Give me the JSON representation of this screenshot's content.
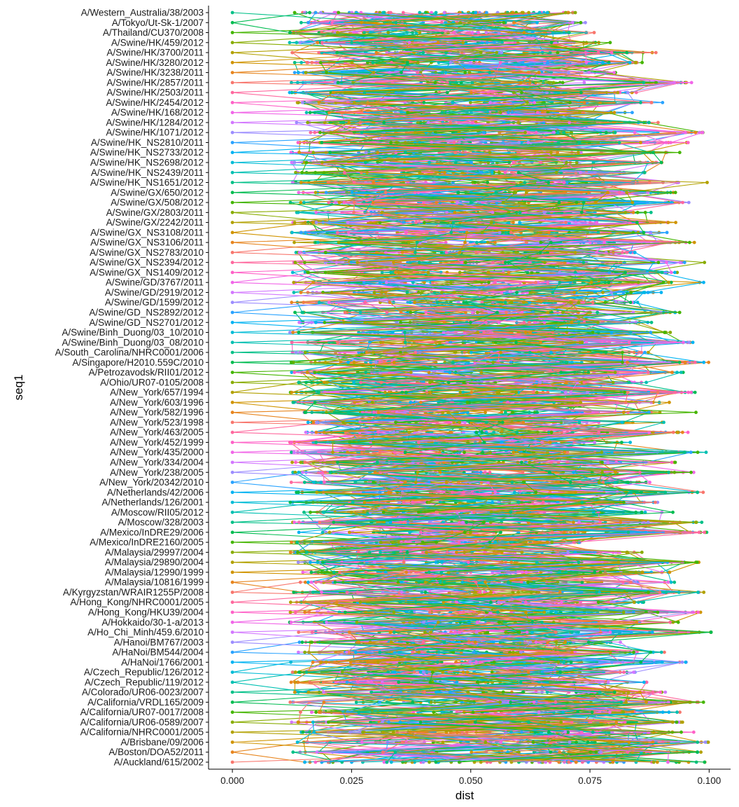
{
  "chart_data": {
    "type": "line",
    "xlabel": "dist",
    "ylabel": "seq1",
    "xlim": [
      -0.005,
      0.1045
    ],
    "x_ticks": [
      0.0,
      0.025,
      0.05,
      0.075,
      0.1
    ],
    "x_tick_labels": [
      "0.000",
      "0.025",
      "0.050",
      "0.075",
      "0.100"
    ],
    "grid": false,
    "legend": "none",
    "y_categories_bottom_to_top": [
      "A/Auckland/615/2002",
      "A/Boston/DOA52/2011",
      "A/Brisbane/09/2006",
      "A/California/NHRC0001/2005",
      "A/California/UR06-0589/2007",
      "A/California/UR07-0017/2008",
      "A/California/VRDL165/2009",
      "A/Colorado/UR06-0023/2007",
      "A/Czech_Republic/119/2012",
      "A/Czech_Republic/126/2012",
      "A/HaNoi/1766/2001",
      "A/HaNoi/BM544/2004",
      "A/Hanoi/BM767/2003",
      "A/Ho_Chi_Minh/459.6/2010",
      "A/Hokkaido/30-1-a/2013",
      "A/Hong_Kong/HKU39/2004",
      "A/Hong_Kong/NHRC0001/2005",
      "A/Kyrgyzstan/WRAIR1255P/2008",
      "A/Malaysia/10816/1999",
      "A/Malaysia/12990/1999",
      "A/Malaysia/29890/2004",
      "A/Malaysia/29997/2004",
      "A/Mexico/InDRE2160/2005",
      "A/Mexico/InDRE29/2006",
      "A/Moscow/328/2003",
      "A/Moscow/RII05/2012",
      "A/Netherlands/126/2001",
      "A/Netherlands/42/2006",
      "A/New_York/20342/2010",
      "A/New_York/238/2005",
      "A/New_York/334/2004",
      "A/New_York/435/2000",
      "A/New_York/452/1999",
      "A/New_York/463/2005",
      "A/New_York/523/1998",
      "A/New_York/582/1996",
      "A/New_York/603/1996",
      "A/New_York/657/1994",
      "A/Ohio/UR07-0105/2008",
      "A/Petrozavodsk/RII01/2012",
      "A/Singapore/H2010.559C/2010",
      "A/South_Carolina/NHRC0001/2006",
      "A/Swine/Binh_Duong/03_08/2010",
      "A/Swine/Binh_Duong/03_10/2010",
      "A/Swine/GD_NS2701/2012",
      "A/Swine/GD_NS2892/2012",
      "A/Swine/GD/1599/2012",
      "A/Swine/GD/2919/2012",
      "A/Swine/GD/3767/2011",
      "A/Swine/GX_NS1409/2012",
      "A/Swine/GX_NS2394/2012",
      "A/Swine/GX_NS2783/2010",
      "A/Swine/GX_NS3106/2011",
      "A/Swine/GX_NS3108/2011",
      "A/Swine/GX/2242/2011",
      "A/Swine/GX/2803/2011",
      "A/Swine/GX/508/2012",
      "A/Swine/GX/650/2012",
      "A/Swine/HK_NS1651/2012",
      "A/Swine/HK_NS2439/2011",
      "A/Swine/HK_NS2698/2012",
      "A/Swine/HK_NS2733/2012",
      "A/Swine/HK_NS2810/2011",
      "A/Swine/HK/1071/2012",
      "A/Swine/HK/1284/2012",
      "A/Swine/HK/168/2012",
      "A/Swine/HK/2454/2012",
      "A/Swine/HK/2503/2011",
      "A/Swine/HK/2857/2011",
      "A/Swine/HK/3238/2011",
      "A/Swine/HK/3280/2012",
      "A/Swine/HK/3700/2011",
      "A/Swine/HK/459/2012",
      "A/Thailand/CU370/2008",
      "A/Tokyo/Ut-Sk-1/2007",
      "A/Western_Australia/38/2003"
    ],
    "series_colors": [
      "#F8766D",
      "#E7851E",
      "#D09400",
      "#B2A100",
      "#89AC00",
      "#45B500",
      "#00BC51",
      "#00C087",
      "#00C0B2",
      "#00BCD6",
      "#00B3F2",
      "#29A3FF",
      "#9C8DFF",
      "#D277FF",
      "#F166E8",
      "#FF61C7",
      "#FF689E"
    ],
    "max_dist": [
      0.1,
      0.099,
      0.101,
      0.098,
      0.096,
      0.095,
      0.1,
      0.091,
      0.087,
      0.085,
      0.097,
      0.093,
      0.082,
      0.101,
      0.094,
      0.099,
      0.089,
      0.1,
      0.096,
      0.092,
      0.098,
      0.086,
      0.073,
      0.1,
      0.099,
      0.095,
      0.09,
      0.101,
      0.088,
      0.097,
      0.094,
      0.1,
      0.084,
      0.096,
      0.091,
      0.099,
      0.092,
      0.098,
      0.087,
      0.095,
      0.1,
      0.089,
      0.097,
      0.093,
      0.088,
      0.096,
      0.085,
      0.091,
      0.099,
      0.094,
      0.1,
      0.086,
      0.097,
      0.092,
      0.095,
      0.089,
      0.098,
      0.093,
      0.101,
      0.087,
      0.091,
      0.094,
      0.096,
      0.099,
      0.09,
      0.088,
      0.092,
      0.085,
      0.097,
      0.083,
      0.086,
      0.089,
      0.08,
      0.077,
      0.076,
      0.073
    ]
  }
}
